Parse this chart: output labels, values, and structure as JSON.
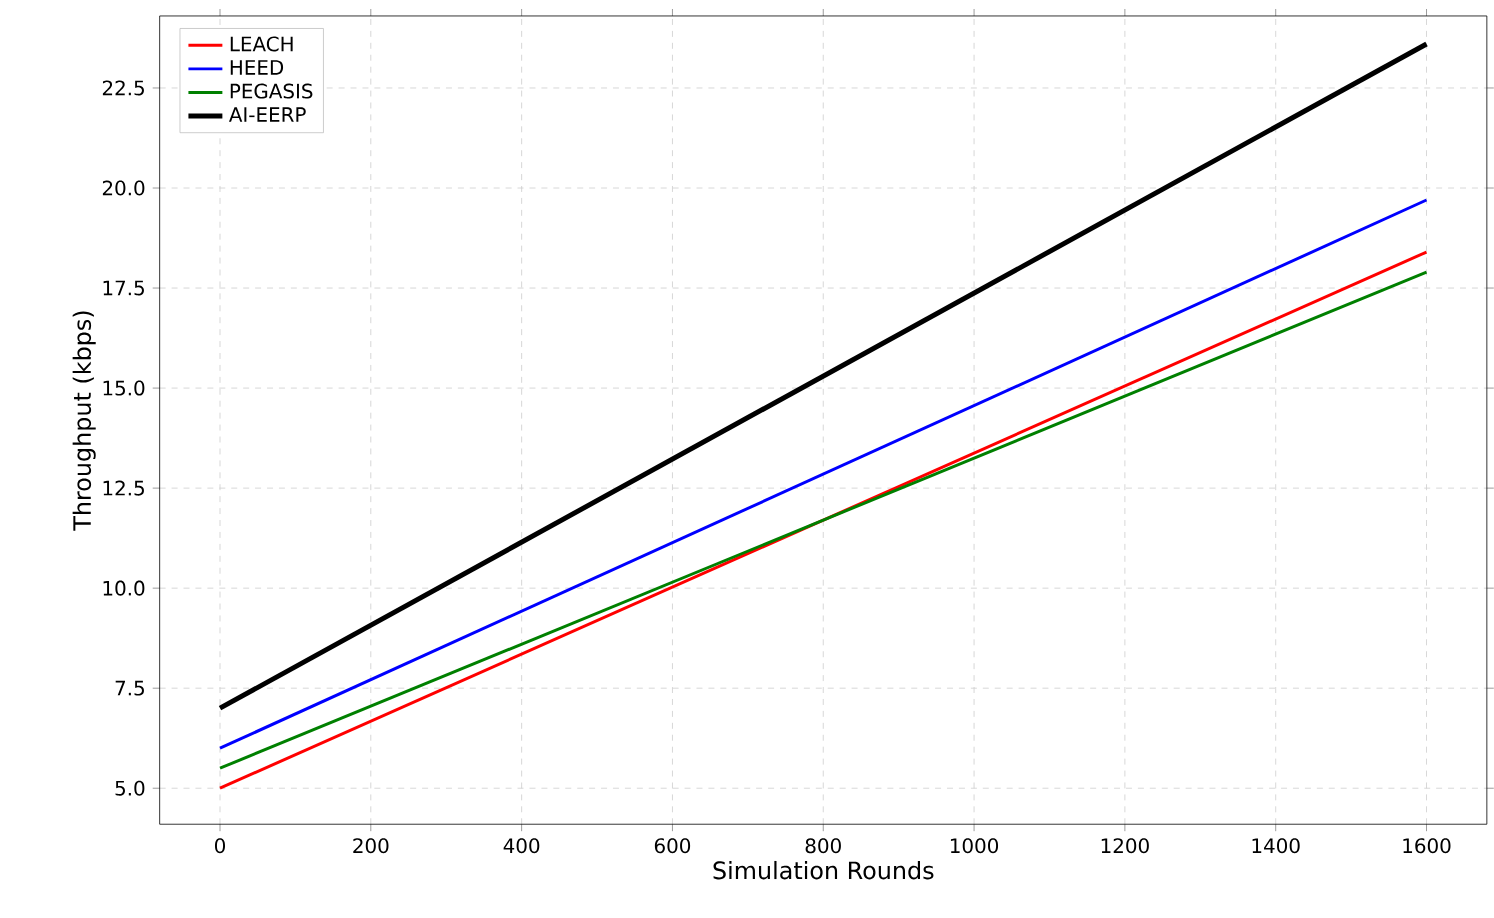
{
  "chart_data": {
    "type": "line",
    "xlabel": "Simulation Rounds",
    "ylabel": "Throughput (kbps)",
    "x": [
      0,
      1600
    ],
    "series": [
      {
        "name": "LEACH",
        "color": "#ff0000",
        "values": [
          5.0,
          18.4
        ]
      },
      {
        "name": "HEED",
        "color": "#0000ff",
        "values": [
          6.0,
          19.7
        ]
      },
      {
        "name": "PEGASIS",
        "color": "#008000",
        "values": [
          5.5,
          17.9
        ]
      },
      {
        "name": "AI-EERP",
        "color": "#000000",
        "values": [
          7.0,
          23.6
        ]
      }
    ],
    "xlim": [
      -80,
      1680
    ],
    "ylim": [
      4.1,
      24.3
    ],
    "xticks": [
      0,
      200,
      400,
      600,
      800,
      1000,
      1200,
      1400,
      1600
    ],
    "yticks": [
      {
        "value": 5,
        "label": "5.0"
      },
      {
        "value": 7.5,
        "label": "7.5"
      },
      {
        "value": 10,
        "label": "10.0"
      },
      {
        "value": 12.5,
        "label": "12.5"
      },
      {
        "value": 15,
        "label": "15.0"
      },
      {
        "value": 17.5,
        "label": "17.5"
      },
      {
        "value": 20,
        "label": "20.0"
      },
      {
        "value": 22.5,
        "label": "22.5"
      }
    ],
    "grid": true,
    "legend": "top left",
    "line_style": "solid",
    "marker": "none"
  }
}
